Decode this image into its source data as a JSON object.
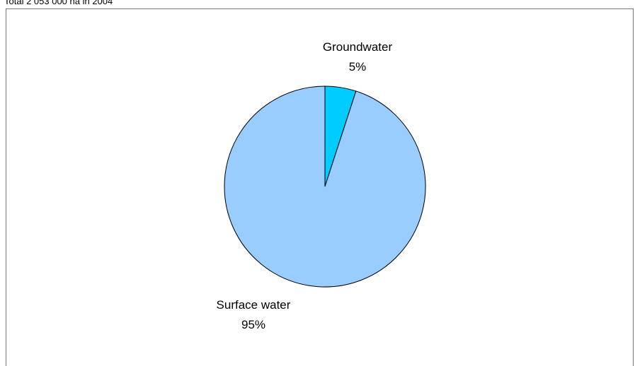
{
  "chart_data": {
    "type": "pie",
    "title": "Total 2 053 000 ha in 2004",
    "categories": [
      "Groundwater",
      "Surface water"
    ],
    "values": [
      5,
      95
    ],
    "value_labels": [
      "5%",
      "95%"
    ],
    "colors": [
      "#00ccff",
      "#99ccff"
    ]
  }
}
